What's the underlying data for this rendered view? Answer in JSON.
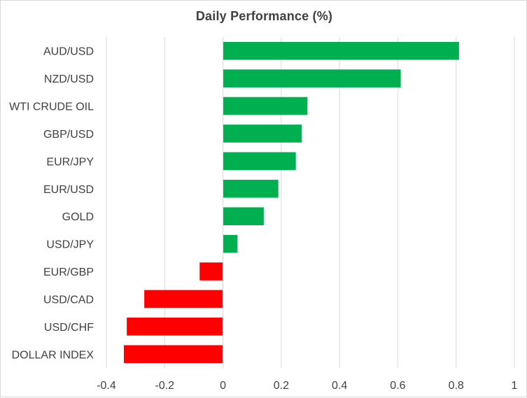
{
  "chart_data": {
    "type": "bar",
    "orientation": "horizontal",
    "title": "Daily Performance  (%)",
    "categories": [
      "AUD/USD",
      "NZD/USD",
      "WTI CRUDE OIL",
      "GBP/USD",
      "EUR/JPY",
      "EUR/USD",
      "GOLD",
      "USD/JPY",
      "EUR/GBP",
      "USD/CAD",
      "USD/CHF",
      "DOLLAR INDEX"
    ],
    "values": [
      0.81,
      0.61,
      0.29,
      0.27,
      0.25,
      0.19,
      0.14,
      0.05,
      -0.08,
      -0.27,
      -0.33,
      -0.34
    ],
    "xlim": [
      -0.4,
      1
    ],
    "xticks": [
      "-0.4",
      "-0.2",
      "0",
      "0.2",
      "0.4",
      "0.6",
      "0.8",
      "1"
    ],
    "xtick_values": [
      -0.4,
      -0.2,
      0,
      0.2,
      0.4,
      0.6,
      0.8,
      1
    ],
    "grid": "vertical",
    "legend": "none",
    "colors": {
      "positive": "#00b050",
      "negative": "#ff0000",
      "grid": "#d9d9d9",
      "text": "#404040"
    }
  }
}
